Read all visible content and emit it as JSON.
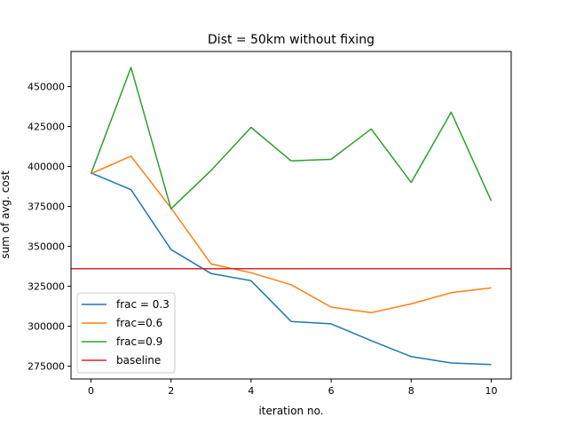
{
  "chart_data": {
    "type": "line",
    "title": "Dist = 50km without fixing",
    "xlabel": "iteration no.",
    "ylabel": "sum of avg. cost",
    "xlim": [
      -0.5,
      10.5
    ],
    "ylim": [
      267000,
      472000
    ],
    "xticks": [
      0,
      2,
      4,
      6,
      8,
      10
    ],
    "yticks": [
      275000,
      300000,
      325000,
      350000,
      375000,
      400000,
      425000,
      450000
    ],
    "grid": false,
    "legend_position": "lower-left",
    "x": [
      0,
      1,
      2,
      3,
      4,
      5,
      6,
      7,
      8,
      9,
      10
    ],
    "series": [
      {
        "name": "frac = 0.3",
        "color": "#1f77b4",
        "values": [
          396000,
          385500,
          348000,
          333000,
          328500,
          303000,
          301500,
          291000,
          281000,
          277000,
          276000
        ]
      },
      {
        "name": "frac=0.6",
        "color": "#ff7f0e",
        "values": [
          395500,
          406500,
          374000,
          339000,
          333500,
          326000,
          312000,
          308500,
          314000,
          321000,
          324000
        ]
      },
      {
        "name": "frac=0.9",
        "color": "#2ca02c",
        "values": [
          395500,
          462000,
          373500,
          397500,
          424500,
          403500,
          404500,
          423500,
          390000,
          434000,
          378500
        ]
      }
    ],
    "hlines": [
      {
        "name": "baseline",
        "color": "#d62728",
        "y": 336000
      }
    ]
  }
}
